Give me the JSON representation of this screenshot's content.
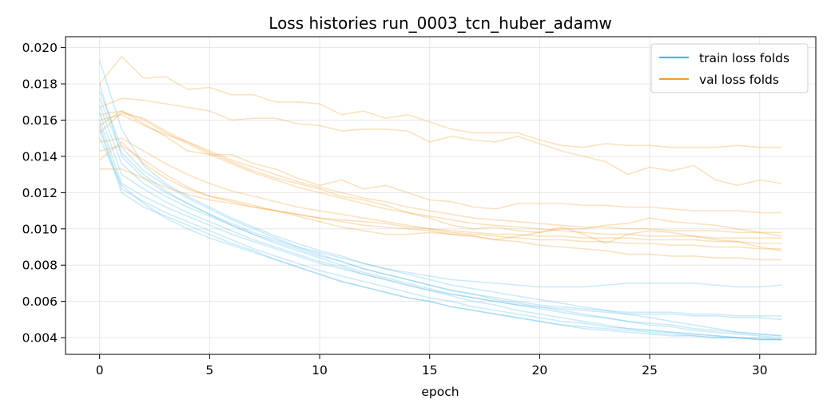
{
  "chart_data": {
    "type": "line",
    "title": "Loss histories run_0003_tcn_huber_adamw",
    "xlabel": "epoch",
    "ylabel": "",
    "xlim": [
      -1.55,
      32.55
    ],
    "ylim": [
      0.00308,
      0.0206
    ],
    "x_ticks": [
      0,
      5,
      10,
      15,
      20,
      25,
      30
    ],
    "x_tick_labels": [
      "0",
      "5",
      "10",
      "15",
      "20",
      "25",
      "30"
    ],
    "y_ticks": [
      0.004,
      0.006,
      0.008,
      0.01,
      0.012,
      0.014,
      0.016,
      0.018,
      0.02
    ],
    "y_tick_labels": [
      "0.004",
      "0.006",
      "0.008",
      "0.010",
      "0.012",
      "0.014",
      "0.016",
      "0.018",
      "0.020"
    ],
    "grid": true,
    "legend_position": "top-right",
    "legend": [
      {
        "label": "train loss folds",
        "color": "#4ab8ea"
      },
      {
        "label": "val loss folds",
        "color": "#f0a030"
      }
    ],
    "series_groups": [
      {
        "group": "train loss folds",
        "color": "#4ab8ea",
        "opacity": 0.28,
        "series": [
          {
            "values": [
              0.0193,
              0.0155,
              0.0135,
              0.0125,
              0.0118,
              0.0112,
              0.0106,
              0.0101,
              0.0096,
              0.0092,
              0.0088,
              0.0085,
              0.0081,
              0.0078,
              0.0075,
              0.0072,
              0.0069,
              0.0067,
              0.0065,
              0.0063,
              0.0061,
              0.0059,
              0.0057,
              0.0055,
              0.0053,
              0.0051,
              0.0049,
              0.0047,
              0.0045,
              0.0043,
              0.0042,
              0.0041
            ]
          },
          {
            "values": [
              0.018,
              0.014,
              0.0128,
              0.012,
              0.0114,
              0.0108,
              0.0103,
              0.0098,
              0.0094,
              0.009,
              0.0087,
              0.0084,
              0.0081,
              0.0078,
              0.0076,
              0.0074,
              0.0072,
              0.0071,
              0.007,
              0.0069,
              0.0068,
              0.0068,
              0.0068,
              0.0069,
              0.007,
              0.007,
              0.007,
              0.007,
              0.0069,
              0.0068,
              0.0068,
              0.0069
            ]
          },
          {
            "values": [
              0.0176,
              0.0145,
              0.0132,
              0.0124,
              0.0117,
              0.0111,
              0.0105,
              0.01,
              0.0095,
              0.009,
              0.0086,
              0.0082,
              0.0078,
              0.0075,
              0.0072,
              0.0069,
              0.0066,
              0.0064,
              0.0062,
              0.006,
              0.0058,
              0.0057,
              0.0056,
              0.0055,
              0.0054,
              0.0054,
              0.0054,
              0.0053,
              0.0053,
              0.0052,
              0.0052,
              0.0052
            ]
          },
          {
            "values": [
              0.0172,
              0.0142,
              0.013,
              0.0121,
              0.0114,
              0.0108,
              0.0102,
              0.0097,
              0.0092,
              0.0088,
              0.0084,
              0.008,
              0.0076,
              0.0073,
              0.007,
              0.0067,
              0.0064,
              0.0062,
              0.006,
              0.0058,
              0.0057,
              0.0056,
              0.0055,
              0.0054,
              0.0053,
              0.0053,
              0.0053,
              0.0052,
              0.0052,
              0.0051,
              0.0051,
              0.005
            ]
          },
          {
            "values": [
              0.0168,
              0.0136,
              0.0125,
              0.0118,
              0.0112,
              0.0107,
              0.0102,
              0.0097,
              0.0093,
              0.0089,
              0.0085,
              0.0082,
              0.0078,
              0.0075,
              0.0072,
              0.0069,
              0.0066,
              0.0064,
              0.0061,
              0.0059,
              0.0057,
              0.0055,
              0.0053,
              0.0051,
              0.0049,
              0.0047,
              0.0046,
              0.0044,
              0.0043,
              0.0042,
              0.0041,
              0.004
            ]
          },
          {
            "values": [
              0.0164,
              0.013,
              0.0122,
              0.0115,
              0.0109,
              0.0104,
              0.0099,
              0.0094,
              0.009,
              0.0086,
              0.0082,
              0.0079,
              0.0075,
              0.0072,
              0.0069,
              0.0066,
              0.0063,
              0.006,
              0.0058,
              0.0055,
              0.0053,
              0.0051,
              0.0049,
              0.0047,
              0.0045,
              0.0044,
              0.0043,
              0.0042,
              0.0041,
              0.004,
              0.004,
              0.0039
            ]
          },
          {
            "values": [
              0.016,
              0.0125,
              0.0118,
              0.0112,
              0.0107,
              0.0102,
              0.0097,
              0.0093,
              0.0089,
              0.0085,
              0.0081,
              0.0078,
              0.0075,
              0.0072,
              0.0069,
              0.0066,
              0.0064,
              0.0062,
              0.006,
              0.0058,
              0.0056,
              0.0054,
              0.0052,
              0.0051,
              0.0049,
              0.0048,
              0.0047,
              0.0045,
              0.0044,
              0.0043,
              0.0042,
              0.0041
            ]
          },
          {
            "values": [
              0.0157,
              0.0122,
              0.0115,
              0.0109,
              0.0104,
              0.0099,
              0.0094,
              0.0089,
              0.0085,
              0.0081,
              0.0077,
              0.0074,
              0.0071,
              0.0068,
              0.0065,
              0.0062,
              0.006,
              0.0057,
              0.0055,
              0.0053,
              0.0051,
              0.0049,
              0.0048,
              0.0046,
              0.0045,
              0.0044,
              0.0043,
              0.0042,
              0.0041,
              0.004,
              0.0039,
              0.0039
            ]
          },
          {
            "values": [
              0.0155,
              0.012,
              0.0112,
              0.0107,
              0.0102,
              0.0097,
              0.0092,
              0.0088,
              0.0083,
              0.0079,
              0.0075,
              0.0071,
              0.0068,
              0.0065,
              0.0062,
              0.006,
              0.0057,
              0.0055,
              0.0053,
              0.0051,
              0.0049,
              0.0047,
              0.0046,
              0.0045,
              0.0044,
              0.0043,
              0.0042,
              0.0041,
              0.004,
              0.004,
              0.0039,
              0.0039
            ]
          },
          {
            "values": [
              0.015,
              0.0124,
              0.0114,
              0.0106,
              0.01,
              0.0095,
              0.0091,
              0.0087,
              0.0083,
              0.0079,
              0.0075,
              0.0071,
              0.0068,
              0.0065,
              0.0062,
              0.006,
              0.0057,
              0.0055,
              0.0053,
              0.0051,
              0.0049,
              0.0047,
              0.0045,
              0.0044,
              0.0043,
              0.0042,
              0.0041,
              0.0041,
              0.004,
              0.004,
              0.0039,
              0.0039
            ]
          }
        ]
      },
      {
        "group": "val loss folds",
        "color": "#f0a030",
        "opacity": 0.3,
        "series": [
          {
            "values": [
              0.018,
              0.0195,
              0.0183,
              0.0184,
              0.0177,
              0.0178,
              0.0174,
              0.0174,
              0.017,
              0.017,
              0.0169,
              0.0163,
              0.0165,
              0.0161,
              0.0163,
              0.0159,
              0.0155,
              0.0153,
              0.0153,
              0.0153,
              0.0149,
              0.0146,
              0.0145,
              0.0147,
              0.0146,
              0.0146,
              0.0145,
              0.0145,
              0.0145,
              0.0146,
              0.0145,
              0.0145
            ]
          },
          {
            "values": [
              0.0167,
              0.0172,
              0.0171,
              0.0169,
              0.0167,
              0.0165,
              0.016,
              0.0161,
              0.0161,
              0.0158,
              0.0157,
              0.0154,
              0.0155,
              0.0155,
              0.0154,
              0.0148,
              0.0151,
              0.0149,
              0.0148,
              0.0151,
              0.0147,
              0.0143,
              0.014,
              0.0137,
              0.013,
              0.0134,
              0.0132,
              0.0135,
              0.0127,
              0.0124,
              0.0127,
              0.0125
            ]
          },
          {
            "values": [
              0.0163,
              0.0165,
              0.0158,
              0.0151,
              0.0143,
              0.0141,
              0.0141,
              0.0136,
              0.0133,
              0.0128,
              0.0124,
              0.0127,
              0.0122,
              0.0124,
              0.012,
              0.0116,
              0.0115,
              0.0112,
              0.0111,
              0.0114,
              0.0114,
              0.0114,
              0.0113,
              0.0113,
              0.0112,
              0.0112,
              0.0111,
              0.011,
              0.011,
              0.011,
              0.0109,
              0.0109
            ]
          },
          {
            "values": [
              0.016,
              0.0163,
              0.0157,
              0.0152,
              0.0148,
              0.0143,
              0.0138,
              0.0134,
              0.013,
              0.0126,
              0.0123,
              0.012,
              0.0117,
              0.0115,
              0.0112,
              0.011,
              0.0108,
              0.0106,
              0.0105,
              0.0104,
              0.0103,
              0.0102,
              0.0101,
              0.0101,
              0.01,
              0.01,
              0.0099,
              0.0099,
              0.0099,
              0.0098,
              0.0098,
              0.0098
            ]
          },
          {
            "values": [
              0.0157,
              0.0165,
              0.016,
              0.0153,
              0.0147,
              0.0141,
              0.0136,
              0.0131,
              0.0127,
              0.0123,
              0.012,
              0.0117,
              0.0114,
              0.0111,
              0.0109,
              0.0107,
              0.0105,
              0.0103,
              0.0102,
              0.0101,
              0.01,
              0.0099,
              0.0098,
              0.0097,
              0.0097,
              0.0096,
              0.0096,
              0.0096,
              0.0095,
              0.0095,
              0.0095,
              0.0095
            ]
          },
          {
            "values": [
              0.0153,
              0.0164,
              0.0161,
              0.0154,
              0.0148,
              0.0142,
              0.0137,
              0.0132,
              0.0128,
              0.0125,
              0.0122,
              0.0118,
              0.0116,
              0.0113,
              0.0109,
              0.0106,
              0.0102,
              0.01,
              0.0101,
              0.0099,
              0.0098,
              0.0101,
              0.0097,
              0.0092,
              0.0097,
              0.0099,
              0.0098,
              0.0096,
              0.0094,
              0.0093,
              0.009,
              0.0088
            ]
          },
          {
            "values": [
              0.0148,
              0.015,
              0.0143,
              0.0136,
              0.013,
              0.0125,
              0.0121,
              0.0118,
              0.0115,
              0.0112,
              0.011,
              0.0108,
              0.0106,
              0.0104,
              0.0102,
              0.01,
              0.0098,
              0.0097,
              0.0096,
              0.0095,
              0.0094,
              0.0094,
              0.0093,
              0.0093,
              0.0092,
              0.0092,
              0.0091,
              0.0091,
              0.009,
              0.009,
              0.0089,
              0.0089
            ]
          },
          {
            "values": [
              0.0143,
              0.0146,
              0.0138,
              0.013,
              0.0123,
              0.0118,
              0.0115,
              0.0112,
              0.011,
              0.0108,
              0.0106,
              0.0104,
              0.0102,
              0.0101,
              0.01,
              0.0099,
              0.0097,
              0.0096,
              0.0094,
              0.0093,
              0.0091,
              0.009,
              0.0089,
              0.0088,
              0.0086,
              0.0086,
              0.0085,
              0.0085,
              0.0084,
              0.0084,
              0.0083,
              0.0083
            ]
          },
          {
            "values": [
              0.0138,
              0.0148,
              0.0136,
              0.0128,
              0.0122,
              0.0118,
              0.0116,
              0.0113,
              0.011,
              0.0107,
              0.0104,
              0.0101,
              0.0099,
              0.0097,
              0.0097,
              0.0098,
              0.0097,
              0.0096,
              0.0094,
              0.0096,
              0.0098,
              0.01,
              0.01,
              0.0102,
              0.0103,
              0.0106,
              0.0104,
              0.0103,
              0.0102,
              0.01,
              0.0098,
              0.0096
            ]
          },
          {
            "values": [
              0.0133,
              0.0133,
              0.0128,
              0.0123,
              0.0119,
              0.0116,
              0.0114,
              0.0112,
              0.011,
              0.0108,
              0.0106,
              0.0105,
              0.0104,
              0.0103,
              0.0101,
              0.01,
              0.0099,
              0.0098,
              0.0097,
              0.0097,
              0.0096,
              0.0096,
              0.0095,
              0.0095,
              0.0095,
              0.0094,
              0.0094,
              0.0094,
              0.0093,
              0.0093,
              0.0092,
              0.0092
            ]
          }
        ]
      }
    ]
  }
}
